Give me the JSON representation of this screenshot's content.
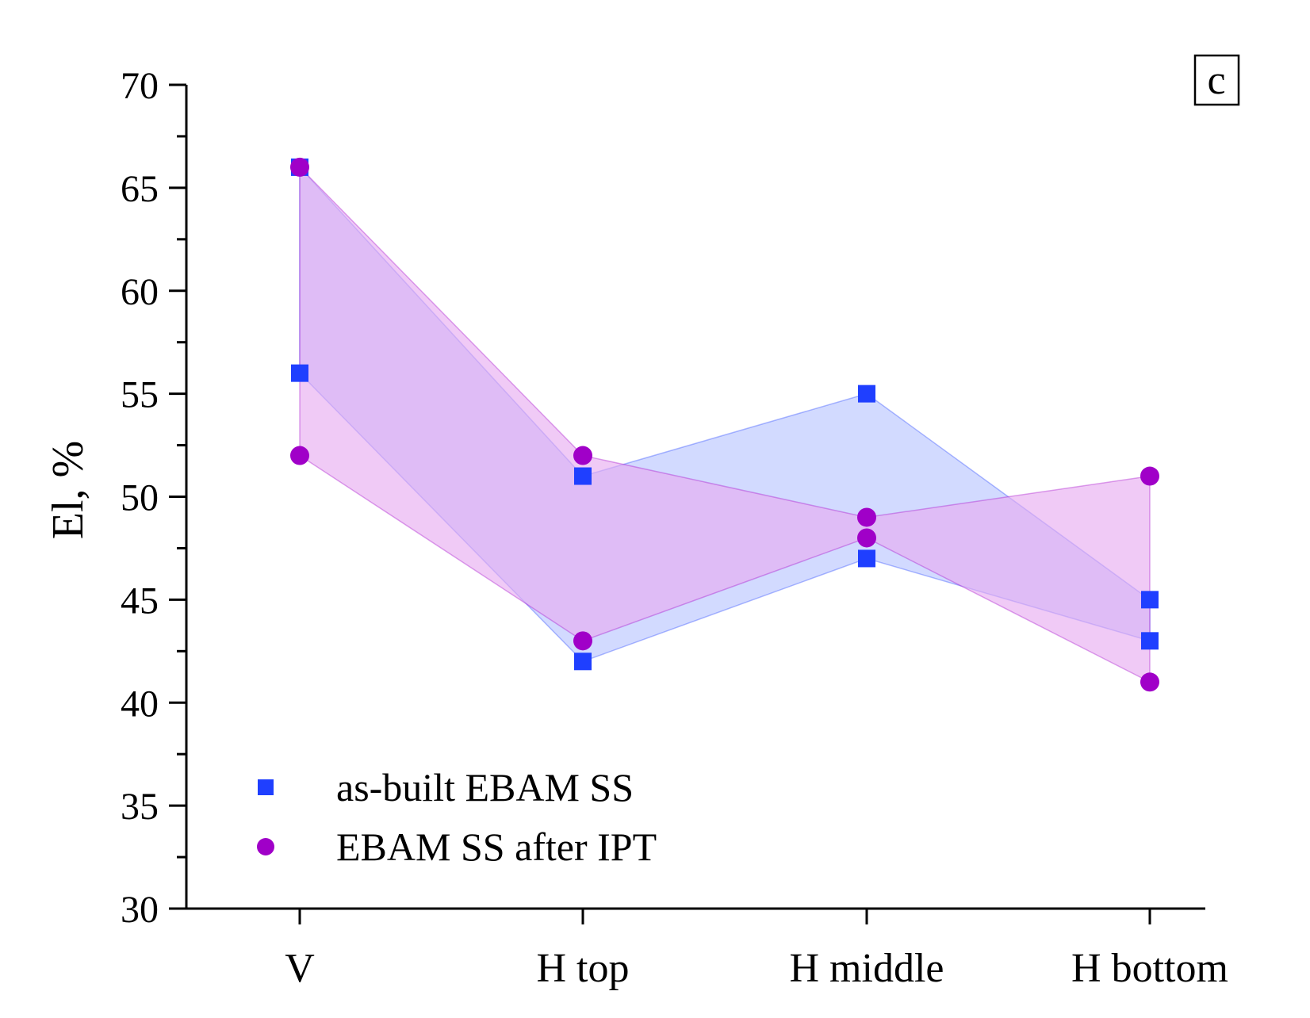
{
  "chart_data": {
    "type": "scatter",
    "panel_label": "c",
    "ylabel": "El, %",
    "xlabel": "",
    "ylim": [
      30,
      70
    ],
    "yticks": [
      30,
      35,
      40,
      45,
      50,
      55,
      60,
      65,
      70
    ],
    "categories": [
      "V",
      "H top",
      "H middle",
      "H bottom"
    ],
    "legend_position": "bottom-left",
    "series": [
      {
        "name": "as-built EBAM SS",
        "marker": "square",
        "color": "#1f3fff",
        "band_fill": "#b7c3ff",
        "upper": [
          66,
          51,
          55,
          45
        ],
        "lower": [
          56,
          42,
          47,
          43
        ]
      },
      {
        "name": "EBAM SS after IPT",
        "marker": "circle",
        "color": "#a000c8",
        "band_fill": "#e6a9f0",
        "upper": [
          66,
          52,
          49,
          51
        ],
        "lower": [
          52,
          43,
          48,
          41
        ]
      }
    ]
  }
}
